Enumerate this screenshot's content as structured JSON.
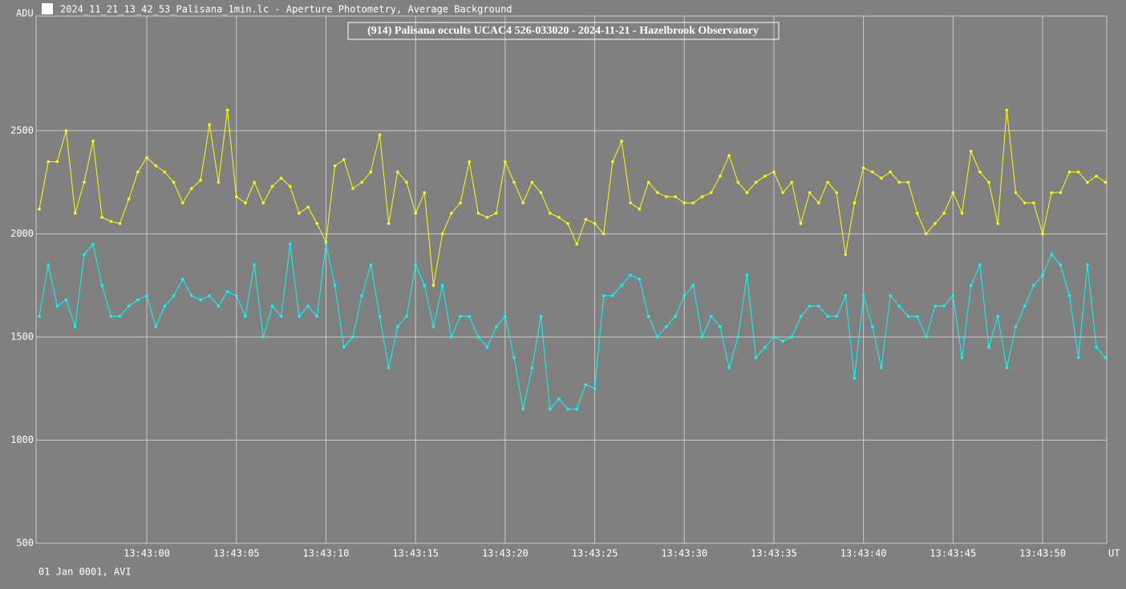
{
  "window": {
    "title": "2024_11_21_13_42_53_Palisana_1min.lc - Aperture Photometry, Average Background"
  },
  "chart_data": {
    "type": "line",
    "title": "(914) Palisana occults UCAC4 526-033020 - 2024-11-21 - Hazelbrook Observatory",
    "y_label": "ADU",
    "x_label": "UT",
    "footer": "01 Jan 0001, AVI",
    "xlim": [
      -6.18,
      53.58
    ],
    "ylim": [
      500,
      3056
    ],
    "yticks": [
      500,
      1000,
      1500,
      2000,
      2500
    ],
    "xticks": [
      {
        "value": 0,
        "label": "13:43:00"
      },
      {
        "value": 5,
        "label": "13:43:05"
      },
      {
        "value": 10,
        "label": "13:43:10"
      },
      {
        "value": 15,
        "label": "13:43:15"
      },
      {
        "value": 20,
        "label": "13:43:20"
      },
      {
        "value": 25,
        "label": "13:43:25"
      },
      {
        "value": 30,
        "label": "13:43:30"
      },
      {
        "value": 35,
        "label": "13:43:35"
      },
      {
        "value": 40,
        "label": "13:43:40"
      },
      {
        "value": 45,
        "label": "13:43:45"
      },
      {
        "value": 50,
        "label": "13:43:50"
      }
    ],
    "grid": true,
    "x": [
      -6,
      -5.5,
      -5,
      -4.5,
      -4,
      -3.5,
      -3,
      -2.5,
      -2,
      -1.5,
      -1,
      -0.5,
      0,
      0.5,
      1,
      1.5,
      2,
      2.5,
      3,
      3.5,
      4,
      4.5,
      5,
      5.5,
      6,
      6.5,
      7,
      7.5,
      8,
      8.5,
      9,
      9.5,
      10,
      10.5,
      11,
      11.5,
      12,
      12.5,
      13,
      13.5,
      14,
      14.5,
      15,
      15.5,
      16,
      16.5,
      17,
      17.5,
      18,
      18.5,
      19,
      19.5,
      20,
      20.5,
      21,
      21.5,
      22,
      22.5,
      23,
      23.5,
      24,
      24.5,
      25,
      25.5,
      26,
      26.5,
      27,
      27.5,
      28,
      28.5,
      29,
      29.5,
      30,
      30.5,
      31,
      31.5,
      32,
      32.5,
      33,
      33.5,
      34,
      34.5,
      35,
      35.5,
      36,
      36.5,
      37,
      37.5,
      38,
      38.5,
      39,
      39.5,
      40,
      40.5,
      41,
      41.5,
      42,
      42.5,
      43,
      43.5,
      44,
      44.5,
      45,
      45.5,
      46,
      46.5,
      47,
      47.5,
      48,
      48.5,
      49,
      49.5,
      50,
      50.5,
      51,
      51.5,
      52,
      52.5,
      53,
      53.5
    ],
    "series": [
      {
        "color": "#ffff00",
        "values": [
          2120,
          2350,
          2350,
          2500,
          2100,
          2250,
          2450,
          2080,
          2060,
          2050,
          2170,
          2300,
          2370,
          2330,
          2300,
          2250,
          2150,
          2220,
          2260,
          2530,
          2250,
          2600,
          2180,
          2150,
          2250,
          2150,
          2230,
          2270,
          2230,
          2100,
          2130,
          2050,
          1960,
          2330,
          2360,
          2220,
          2250,
          2300,
          2480,
          2050,
          2300,
          2250,
          2100,
          2200,
          1750,
          2000,
          2100,
          2150,
          2350,
          2100,
          2080,
          2100,
          2350,
          2250,
          2150,
          2250,
          2200,
          2100,
          2080,
          2050,
          1950,
          2070,
          2050,
          2000,
          2350,
          2450,
          2150,
          2120,
          2250,
          2200,
          2180,
          2180,
          2150,
          2150,
          2180,
          2200,
          2280,
          2380,
          2250,
          2200,
          2250,
          2280,
          2300,
          2200,
          2250,
          2050,
          2200,
          2150,
          2250,
          2200,
          1900,
          2150,
          2320,
          2300,
          2270,
          2300,
          2250,
          2250,
          2100,
          2000,
          2050,
          2100,
          2200,
          2100,
          2400,
          2300,
          2250,
          2050,
          2600,
          2200,
          2150,
          2150,
          2000,
          2200,
          2200,
          2300,
          2300,
          2250,
          2280,
          2250
        ]
      },
      {
        "color": "#00ffff",
        "values": [
          1600,
          1850,
          1650,
          1680,
          1550,
          1900,
          1950,
          1750,
          1600,
          1600,
          1650,
          1680,
          1700,
          1550,
          1650,
          1700,
          1780,
          1700,
          1680,
          1700,
          1650,
          1720,
          1700,
          1600,
          1850,
          1500,
          1650,
          1600,
          1950,
          1600,
          1650,
          1600,
          1950,
          1750,
          1450,
          1500,
          1700,
          1850,
          1600,
          1350,
          1550,
          1600,
          1850,
          1750,
          1550,
          1750,
          1500,
          1600,
          1600,
          1500,
          1450,
          1550,
          1600,
          1400,
          1150,
          1350,
          1600,
          1150,
          1200,
          1150,
          1150,
          1270,
          1250,
          1700,
          1700,
          1750,
          1800,
          1780,
          1600,
          1500,
          1550,
          1600,
          1700,
          1750,
          1500,
          1600,
          1550,
          1350,
          1500,
          1800,
          1400,
          1450,
          1500,
          1480,
          1500,
          1600,
          1650,
          1650,
          1600,
          1600,
          1700,
          1300,
          1700,
          1550,
          1350,
          1700,
          1650,
          1600,
          1600,
          1500,
          1650,
          1650,
          1700,
          1400,
          1750,
          1850,
          1450,
          1600,
          1350,
          1550,
          1650,
          1750,
          1800,
          1900,
          1850,
          1700,
          1400,
          1850,
          1450,
          1400
        ]
      }
    ]
  }
}
